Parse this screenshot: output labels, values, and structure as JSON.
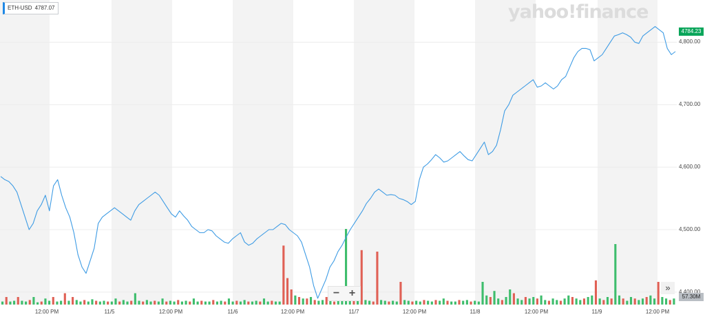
{
  "legend": {
    "symbol": "ETH-USD",
    "value": "4787.07"
  },
  "watermark": "yahoo!finance",
  "current_price_label": "4784.23",
  "volume_label": "57.30M",
  "zoom": {
    "minus": "−",
    "plus": "+"
  },
  "expand_label": "»",
  "chart_data": {
    "type": "line",
    "title": "",
    "xlabel": "",
    "ylabel": "",
    "x_ticks": [
      "12:00 PM",
      "11/5",
      "12:00 PM",
      "11/6",
      "12:00 PM",
      "11/7",
      "12:00 PM",
      "11/8",
      "12:00 PM",
      "11/9",
      "12:00 PM"
    ],
    "y_ticks": [
      "4,400.00",
      "4,500.00",
      "4,600.00",
      "4,700.00",
      "4,800.00"
    ],
    "ylim": [
      4380,
      4840
    ],
    "grid": true,
    "colors": {
      "line": "#3d9be4",
      "up": "#3ebd6c",
      "down": "#e06055",
      "band": "#f3f3f3",
      "price_tag": "#09a55a"
    },
    "series": [
      {
        "values": [
          4585,
          4580,
          4577,
          4570,
          4560,
          4540,
          4520,
          4500,
          4510,
          4530,
          4540,
          4555,
          4530,
          4570,
          4580,
          4555,
          4535,
          4520,
          4495,
          4460,
          4440,
          4430,
          4450,
          4470,
          4510,
          4520,
          4525,
          4530,
          4535,
          4530,
          4525,
          4520,
          4515,
          4530,
          4540,
          4545,
          4550,
          4555,
          4560,
          4555,
          4545,
          4535,
          4525,
          4520,
          4530,
          4522,
          4515,
          4505,
          4500,
          4495,
          4495,
          4500,
          4498,
          4490,
          4485,
          4480,
          4478,
          4485,
          4490,
          4495,
          4480,
          4475,
          4478,
          4485,
          4490,
          4495,
          4500,
          4500,
          4505,
          4510,
          4508,
          4500,
          4495,
          4490,
          4480,
          4460,
          4440,
          4410,
          4390,
          4405,
          4420,
          4440,
          4450,
          4465,
          4475,
          4488,
          4500,
          4510,
          4520,
          4530,
          4542,
          4550,
          4560,
          4565,
          4560,
          4555,
          4556,
          4555,
          4550,
          4548,
          4545,
          4540,
          4545,
          4580,
          4600,
          4605,
          4612,
          4620,
          4615,
          4608,
          4610,
          4615,
          4620,
          4625,
          4618,
          4612,
          4610,
          4620,
          4630,
          4640,
          4620,
          4625,
          4635,
          4660,
          4690,
          4700,
          4715,
          4720,
          4725,
          4730,
          4735,
          4740,
          4728,
          4730,
          4735,
          4730,
          4725,
          4730,
          4740,
          4745,
          4760,
          4775,
          4785,
          4790,
          4790,
          4788,
          4770,
          4775,
          4780,
          4790,
          4800,
          4810,
          4812,
          4815,
          4812,
          4808,
          4800,
          4798,
          4810,
          4815,
          4820,
          4825,
          4820,
          4815,
          4790,
          4780,
          4785
        ]
      }
    ],
    "volume": {
      "max": 1,
      "values": [
        0.04,
        0.1,
        0.04,
        0.05,
        0.1,
        0.05,
        0.04,
        0.06,
        0.1,
        0.03,
        0.04,
        0.08,
        0.05,
        0.1,
        0.04,
        0.05,
        0.15,
        0.05,
        0.1,
        0.06,
        0.04,
        0.06,
        0.04,
        0.07,
        0.05,
        0.04,
        0.05,
        0.04,
        0.04,
        0.08,
        0.04,
        0.06,
        0.04,
        0.05,
        0.15,
        0.05,
        0.04,
        0.06,
        0.04,
        0.05,
        0.04,
        0.08,
        0.04,
        0.05,
        0.04,
        0.06,
        0.04,
        0.05,
        0.04,
        0.08,
        0.04,
        0.05,
        0.04,
        0.04,
        0.06,
        0.04,
        0.05,
        0.04,
        0.08,
        0.04,
        0.05,
        0.04,
        0.06,
        0.04,
        0.04,
        0.05,
        0.04,
        0.08,
        0.04,
        0.05,
        0.04,
        0.04,
        0.78,
        0.35,
        0.2,
        0.12,
        0.1,
        0.08,
        0.08,
        0.1,
        0.06,
        0.05,
        0.06,
        0.1,
        0.05,
        0.04,
        0.06,
        0.05,
        1.0,
        0.06,
        0.1,
        0.05,
        0.72,
        0.06,
        0.05,
        0.04,
        0.7,
        0.06,
        0.05,
        0.04,
        0.05,
        0.04,
        0.3,
        0.06,
        0.05,
        0.04,
        0.05,
        0.04,
        0.06,
        0.05,
        0.04,
        0.06,
        0.05,
        0.08,
        0.05,
        0.04,
        0.04,
        0.06,
        0.05,
        0.06,
        0.04,
        0.05,
        0.04,
        0.3,
        0.12,
        0.1,
        0.18,
        0.08,
        0.06,
        0.1,
        0.2,
        0.15,
        0.08,
        0.06,
        0.1,
        0.08,
        0.1,
        0.08,
        0.12,
        0.06,
        0.05,
        0.08,
        0.06,
        0.05,
        0.08,
        0.12,
        0.1,
        0.08,
        0.06,
        0.08,
        0.1,
        0.12,
        0.32,
        0.08,
        0.06,
        0.1,
        0.08,
        0.8,
        0.12,
        0.08,
        0.05,
        0.1,
        0.08,
        0.06,
        0.08,
        0.1,
        0.12,
        0.08,
        0.3,
        0.1,
        0.08,
        0.06,
        0.08
      ],
      "down": [
        0,
        1,
        0,
        0,
        1,
        0,
        0,
        1,
        0,
        0,
        1,
        0,
        0,
        1,
        0,
        0,
        1,
        0,
        1,
        0,
        0,
        1,
        0,
        0,
        1,
        0,
        0,
        1,
        0,
        0,
        1,
        0,
        0,
        1,
        0,
        0,
        1,
        0,
        0,
        1,
        0,
        0,
        1,
        0,
        0,
        1,
        0,
        0,
        1,
        0,
        0,
        1,
        0,
        0,
        1,
        0,
        0,
        1,
        0,
        0,
        1,
        0,
        0,
        1,
        0,
        0,
        1,
        0,
        0,
        1,
        0,
        0,
        1,
        1,
        1,
        0,
        1,
        0,
        1,
        0,
        1,
        0,
        0,
        1,
        0,
        1,
        0,
        0,
        0,
        0,
        1,
        0,
        1,
        0,
        0,
        1,
        1,
        0,
        0,
        1,
        0,
        0,
        1,
        0,
        0,
        1,
        0,
        0,
        1,
        0,
        0,
        1,
        0,
        0,
        1,
        0,
        0,
        1,
        0,
        0,
        1,
        0,
        0,
        0,
        0,
        1,
        0,
        0,
        1,
        0,
        0,
        1,
        0,
        0,
        1,
        0,
        0,
        1,
        0,
        0,
        1,
        0,
        0,
        1,
        0,
        0,
        1,
        0,
        0,
        1,
        0,
        0,
        1,
        0,
        1,
        0,
        1,
        0,
        0,
        1,
        0,
        0,
        1,
        0,
        0,
        1,
        0,
        0,
        1,
        0,
        0,
        1,
        0,
        0,
        1
      ]
    }
  }
}
